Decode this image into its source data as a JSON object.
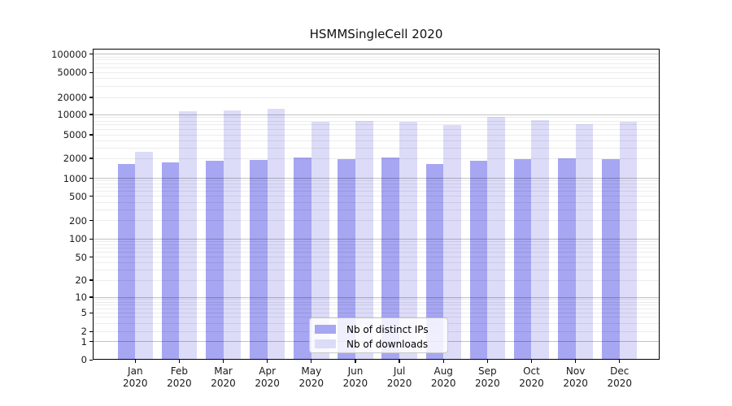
{
  "title": "HSMMSingleCell 2020",
  "chart_data": {
    "type": "bar",
    "title": "HSMMSingleCell 2020",
    "categories": [
      "Jan 2020",
      "Feb 2020",
      "Mar 2020",
      "Apr 2020",
      "May 2020",
      "Jun 2020",
      "Jul 2020",
      "Aug 2020",
      "Sep 2020",
      "Oct 2020",
      "Nov 2020",
      "Dec 2020"
    ],
    "series": [
      {
        "name": "Nb of distinct IPs",
        "color": "#a6a6f2",
        "values": [
          1620,
          1730,
          1840,
          1910,
          2060,
          1950,
          2060,
          1620,
          1840,
          1950,
          2030,
          1950
        ]
      },
      {
        "name": "Nb of downloads",
        "color": "#dcdcf8",
        "values": [
          2600,
          11300,
          11800,
          12600,
          7900,
          8100,
          7850,
          6900,
          9100,
          8300,
          7100,
          7700
        ]
      }
    ],
    "yscale": "symlog",
    "ylim": [
      0,
      123000
    ],
    "yticks": [
      0,
      1,
      2,
      5,
      10,
      20,
      50,
      100,
      200,
      500,
      1000,
      2000,
      5000,
      10000,
      20000,
      50000,
      100000
    ],
    "grid": true,
    "legend_position": "lower center inside plot"
  },
  "legend": {
    "items": [
      {
        "label": "Nb of distinct IPs",
        "key": "ips"
      },
      {
        "label": "Nb of downloads",
        "key": "downloads"
      }
    ]
  }
}
